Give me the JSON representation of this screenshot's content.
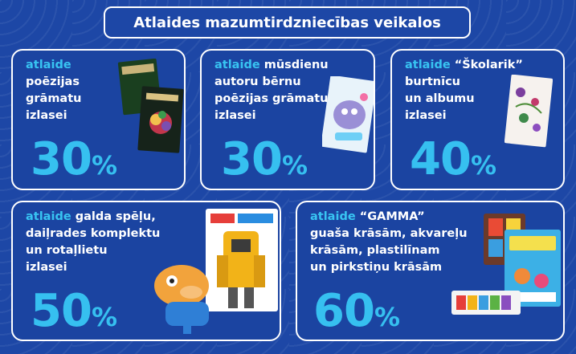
{
  "header": {
    "title": "Atlaides mazumtirdzniecības veikalos"
  },
  "cards": [
    {
      "highlight": "atlaide",
      "text": "poēzijas\ngrāmatu\nizlasei",
      "value": "30",
      "unit": "%"
    },
    {
      "highlight": "atlaide",
      "text": " mūsdienu\nautoru bērnu\npoēzijas grāmatu\nizlasei",
      "value": "30",
      "unit": "%"
    },
    {
      "highlight": "atlaide",
      "text": " “Školarik”\nburtnīcu\nun albumu\nizlasei",
      "value": "40",
      "unit": "%"
    },
    {
      "highlight": "atlaide",
      "text": " galda spēļu,\ndaiļrades komplektu\nun rotaļlietu\nizlasei",
      "value": "50",
      "unit": "%"
    },
    {
      "highlight": "atlaide",
      "text": " “GAMMA”\nguaša krāsām, akvareļu\nkrāsām, plastilīnam\nun pirkstiņu krāsām",
      "value": "60",
      "unit": "%"
    }
  ],
  "colors": {
    "background": "#1d47a6",
    "accent": "#36c0f0",
    "border": "#ffffff"
  }
}
